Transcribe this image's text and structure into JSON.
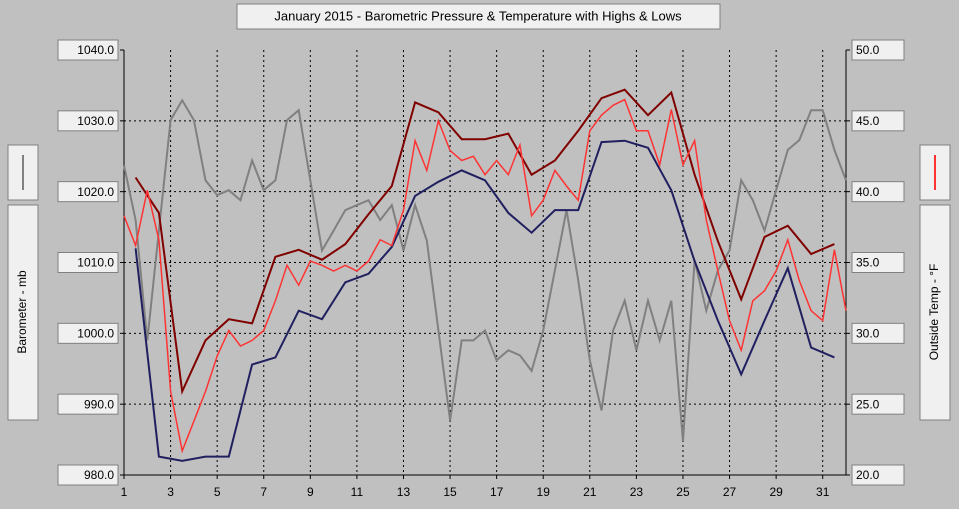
{
  "chart_data": {
    "type": "line",
    "title": "January 2015 - Barometric Pressure & Temperature with Highs & Lows",
    "y_label": "Barometer - mb",
    "y2_label": "Outside Temp - °F",
    "xlim": [
      1,
      32
    ],
    "xticks": [
      1,
      3,
      5,
      7,
      9,
      11,
      13,
      15,
      17,
      19,
      21,
      23,
      25,
      27,
      29,
      31
    ],
    "ylim": [
      980,
      1040
    ],
    "yticks": [
      {
        "value": 980,
        "label": "980.0"
      },
      {
        "value": 990,
        "label": "990.0"
      },
      {
        "value": 1000,
        "label": "1000.0"
      },
      {
        "value": 1010,
        "label": "1010.0"
      },
      {
        "value": 1020,
        "label": "1020.0"
      },
      {
        "value": 1030,
        "label": "1030.0"
      },
      {
        "value": 1040,
        "label": "1040.0"
      }
    ],
    "y2lim": [
      20,
      50
    ],
    "y2ticks": [
      {
        "value": 20,
        "label": "20.0"
      },
      {
        "value": 25,
        "label": "25.0"
      },
      {
        "value": 30,
        "label": "30.0"
      },
      {
        "value": 35,
        "label": "35.0"
      },
      {
        "value": 40,
        "label": "40.0"
      },
      {
        "value": 45,
        "label": "45.0"
      },
      {
        "value": 50,
        "label": "50.0"
      }
    ],
    "grid": true,
    "x": [
      1,
      1.5,
      2,
      2.5,
      3,
      3.5,
      4,
      4.5,
      5,
      5.5,
      6,
      6.5,
      7,
      7.5,
      8,
      8.5,
      9,
      9.5,
      10,
      10.5,
      11,
      11.5,
      12,
      12.5,
      13,
      13.5,
      14,
      14.5,
      15,
      15.5,
      16,
      16.5,
      17,
      17.5,
      18,
      18.5,
      19,
      19.5,
      20,
      20.5,
      21,
      21.5,
      22,
      22.5,
      23,
      23.5,
      24,
      24.5,
      25,
      25.5,
      26,
      26.5,
      27,
      27.5,
      28,
      28.5,
      29,
      29.5,
      30,
      30.5,
      31,
      31.5,
      32
    ],
    "series": [
      {
        "name": "Barometer - mb",
        "color": "#808080",
        "values": [
          1023.7,
          1016.0,
          999.0,
          1014.5,
          1030.1,
          1032.9,
          1030.1,
          1021.6,
          1019.5,
          1020.2,
          1018.8,
          1024.4,
          1020.2,
          1021.6,
          1030.1,
          1031.5,
          1021.6,
          1011.7,
          1014.5,
          1017.4,
          1018.1,
          1018.8,
          1016.0,
          1018.1,
          1011.7,
          1018.1,
          1013.1,
          1000.4,
          987.7,
          999.0,
          999.0,
          1000.4,
          996.2,
          997.6,
          996.9,
          994.7,
          1000.4,
          1008.9,
          1017.4,
          1007.5,
          996.2,
          989.1,
          1000.4,
          1004.6,
          997.6,
          1004.6,
          999.0,
          1004.6,
          984.8,
          1010.3,
          1003.2,
          1008.9,
          1011.7,
          1021.6,
          1018.8,
          1014.5,
          1020.2,
          1025.9,
          1027.3,
          1031.5,
          1031.5,
          1025.9,
          1021.6
        ]
      },
      {
        "name": "Outside Temp - °F",
        "color": "#ff3333",
        "axis": "y2",
        "values": [
          38.3,
          36.2,
          40.1,
          36.6,
          25.9,
          21.7,
          23.8,
          25.9,
          28.4,
          30.2,
          29.1,
          29.5,
          30.2,
          32.3,
          34.8,
          33.4,
          35.1,
          34.8,
          34.4,
          34.8,
          34.4,
          35.1,
          36.6,
          36.2,
          38.7,
          43.6,
          41.5,
          45.0,
          42.9,
          42.2,
          42.5,
          41.2,
          42.2,
          41.2,
          43.3,
          38.3,
          39.4,
          41.5,
          40.4,
          39.4,
          44.3,
          45.4,
          46.1,
          46.5,
          44.3,
          44.3,
          41.9,
          45.8,
          41.9,
          43.6,
          38.0,
          34.4,
          30.9,
          28.8,
          32.3,
          33.0,
          34.4,
          36.6,
          33.7,
          31.6,
          30.9,
          35.9,
          31.6
        ]
      },
      {
        "color": "#800000",
        "axis": "y2",
        "x": [
          1.5,
          2.5,
          3.5,
          4.5,
          5.5,
          6.5,
          7.5,
          8.5,
          9.5,
          10.5,
          11.5,
          12.5,
          13.5,
          14.5,
          15.5,
          16.5,
          17.5,
          18.5,
          19.5,
          20.5,
          21.5,
          22.5,
          23.5,
          24.5,
          25.5,
          26.5,
          27.5,
          28.5,
          29.5,
          30.5,
          31.5
        ],
        "values": [
          41.0,
          38.5,
          25.9,
          29.5,
          31.0,
          30.7,
          35.4,
          35.9,
          35.2,
          36.3,
          38.4,
          40.4,
          46.3,
          45.6,
          43.7,
          43.7,
          44.1,
          41.2,
          42.2,
          44.3,
          46.6,
          47.2,
          45.4,
          47.0,
          41.2,
          36.5,
          32.4,
          36.8,
          37.6,
          35.6,
          36.3
        ]
      },
      {
        "color": "#202060",
        "axis": "y2",
        "x": [
          1.5,
          2.5,
          3.5,
          4.5,
          5.5,
          6.5,
          7.5,
          8.5,
          9.5,
          10.5,
          11.5,
          12.5,
          13.5,
          14.5,
          15.5,
          16.5,
          17.5,
          18.5,
          19.5,
          20.5,
          21.5,
          22.5,
          23.5,
          24.5,
          25.5,
          26.5,
          27.5,
          28.5,
          29.5,
          30.5,
          31.5
        ],
        "values": [
          36.0,
          21.3,
          21.0,
          21.3,
          21.3,
          27.8,
          28.3,
          31.6,
          31.0,
          33.6,
          34.2,
          36.1,
          39.7,
          40.7,
          41.5,
          40.8,
          38.5,
          37.1,
          38.7,
          38.7,
          43.5,
          43.6,
          43.1,
          40.1,
          35.1,
          30.9,
          27.1,
          30.9,
          34.6,
          29.0,
          28.3
        ]
      }
    ]
  }
}
